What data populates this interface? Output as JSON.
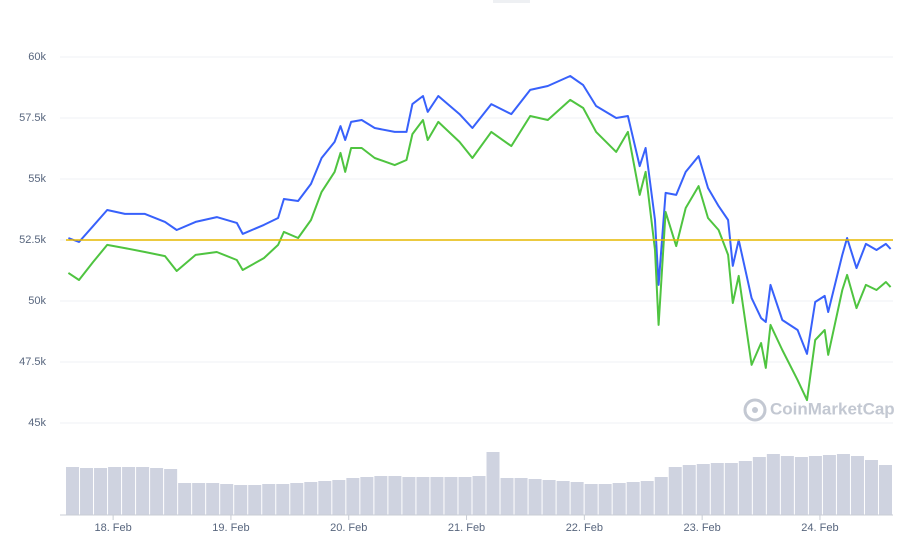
{
  "chart_data": {
    "type": "line",
    "x": [
      17.62,
      17.71,
      17.83,
      17.95,
      18.1,
      18.27,
      18.44,
      18.54,
      18.7,
      18.88,
      19.05,
      19.1,
      19.28,
      19.4,
      19.45,
      19.57,
      19.68,
      19.77,
      19.88,
      19.93,
      19.97,
      20.02,
      20.11,
      20.22,
      20.39,
      20.49,
      20.54,
      20.63,
      20.67,
      20.76,
      20.94,
      21.05,
      21.21,
      21.38,
      21.54,
      21.69,
      21.88,
      21.99,
      22.1,
      22.27,
      22.37,
      22.47,
      22.52,
      22.6,
      22.63,
      22.69,
      22.78,
      22.86,
      22.97,
      23.05,
      23.14,
      23.22,
      23.26,
      23.31,
      23.42,
      23.5,
      23.54,
      23.58,
      23.68,
      23.81,
      23.89,
      23.96,
      24.04,
      24.07,
      24.19,
      24.23,
      24.31,
      24.39,
      24.48,
      24.56,
      24.6
    ],
    "series": [
      {
        "color": "#3861fb",
        "values": [
          52580,
          52420,
          53070,
          53730,
          53570,
          53570,
          53240,
          52910,
          53240,
          53440,
          53200,
          52750,
          53120,
          53400,
          54180,
          54100,
          54800,
          55860,
          56520,
          57170,
          56600,
          57340,
          57420,
          57090,
          56930,
          56930,
          58070,
          58400,
          57750,
          58400,
          57660,
          57090,
          58070,
          57660,
          58650,
          58810,
          59220,
          58850,
          57990,
          57500,
          57580,
          55530,
          56270,
          53320,
          50660,
          54430,
          54350,
          55290,
          55940,
          54630,
          53890,
          53320,
          51440,
          52500,
          50120,
          49300,
          49140,
          50660,
          49220,
          48810,
          47830,
          49960,
          50210,
          49550,
          51890,
          52580,
          51350,
          52340,
          52090,
          52340,
          52130
        ]
      },
      {
        "color": "#4fc440",
        "values": [
          51150,
          50860,
          51600,
          52300,
          52170,
          52010,
          51840,
          51230,
          51890,
          52010,
          51680,
          51270,
          51760,
          52300,
          52830,
          52580,
          53320,
          54470,
          55290,
          56070,
          55290,
          56270,
          56270,
          55860,
          55570,
          55780,
          56840,
          57420,
          56600,
          57340,
          56520,
          55860,
          56930,
          56350,
          57580,
          57420,
          58240,
          57910,
          56930,
          56110,
          56930,
          54350,
          55290,
          52090,
          49020,
          53650,
          52250,
          53810,
          54710,
          53400,
          52910,
          51890,
          49920,
          51030,
          47380,
          48280,
          47260,
          49020,
          47990,
          46760,
          45940,
          48400,
          48810,
          47790,
          50450,
          51070,
          49710,
          50660,
          50450,
          50780,
          50570
        ]
      }
    ],
    "reference_line": {
      "value": 52500,
      "color": "#e6b800"
    },
    "xlim": [
      17.6,
      24.62
    ],
    "xticks": [
      {
        "value": 18,
        "label": "18. Feb"
      },
      {
        "value": 19,
        "label": "19. Feb"
      },
      {
        "value": 20,
        "label": "20. Feb"
      },
      {
        "value": 21,
        "label": "21. Feb"
      },
      {
        "value": 22,
        "label": "22. Feb"
      },
      {
        "value": 23,
        "label": "23. Feb"
      },
      {
        "value": 24,
        "label": "24. Feb"
      }
    ],
    "ylim": [
      45000,
      60000
    ],
    "yticks": [
      {
        "value": 45000,
        "label": "45k"
      },
      {
        "value": 47500,
        "label": "47.5k"
      },
      {
        "value": 50000,
        "label": "50k"
      },
      {
        "value": 52500,
        "label": "52.5k"
      },
      {
        "value": 55000,
        "label": "55k"
      },
      {
        "value": 57500,
        "label": "57.5k"
      },
      {
        "value": 60000,
        "label": "60k"
      }
    ],
    "grid": true,
    "volume": {
      "color": "#cfd3e0",
      "lim": [
        0,
        70
      ],
      "values": [
        48,
        47,
        47,
        48,
        48,
        48,
        47,
        46,
        32,
        32,
        32,
        31,
        30,
        30,
        31,
        31,
        32,
        33,
        34,
        35,
        37,
        38,
        39,
        39,
        38,
        38,
        38,
        38,
        38,
        39,
        63,
        37,
        37,
        36,
        35,
        34,
        33,
        31,
        31,
        32,
        33,
        34,
        38,
        48,
        50,
        51,
        52,
        52,
        54,
        58,
        61,
        59,
        58,
        59,
        60,
        61,
        59,
        55,
        50
      ]
    },
    "watermark": "CoinMarketCap"
  }
}
